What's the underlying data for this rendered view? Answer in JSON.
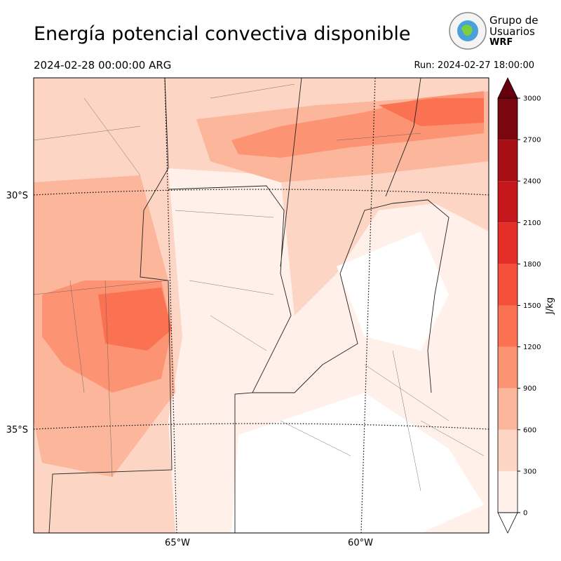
{
  "header": {
    "title": "Energía potencial convectiva disponible",
    "valid_time": "2024-02-28 00:00:00 ARG",
    "run": "Run: 2024-02-27 18:00:00"
  },
  "logo": {
    "line1": "Grupo de",
    "line2": "Usuarios",
    "line3": "WRF"
  },
  "map": {
    "lat_labels": [
      "30°S",
      "35°S"
    ],
    "lon_labels": [
      "65°W",
      "60°W"
    ]
  },
  "colorbar": {
    "label": "J/kg",
    "ticks": [
      0,
      300,
      600,
      900,
      1200,
      1500,
      1800,
      2100,
      2400,
      2700,
      3000
    ],
    "colors": [
      "#fff0ea",
      "#fdd5c4",
      "#fcb69b",
      "#fc9474",
      "#fb7252",
      "#f4503a",
      "#e32f27",
      "#c5181c",
      "#a50f15",
      "#7a0610"
    ],
    "extend_color": "#67000d"
  }
}
